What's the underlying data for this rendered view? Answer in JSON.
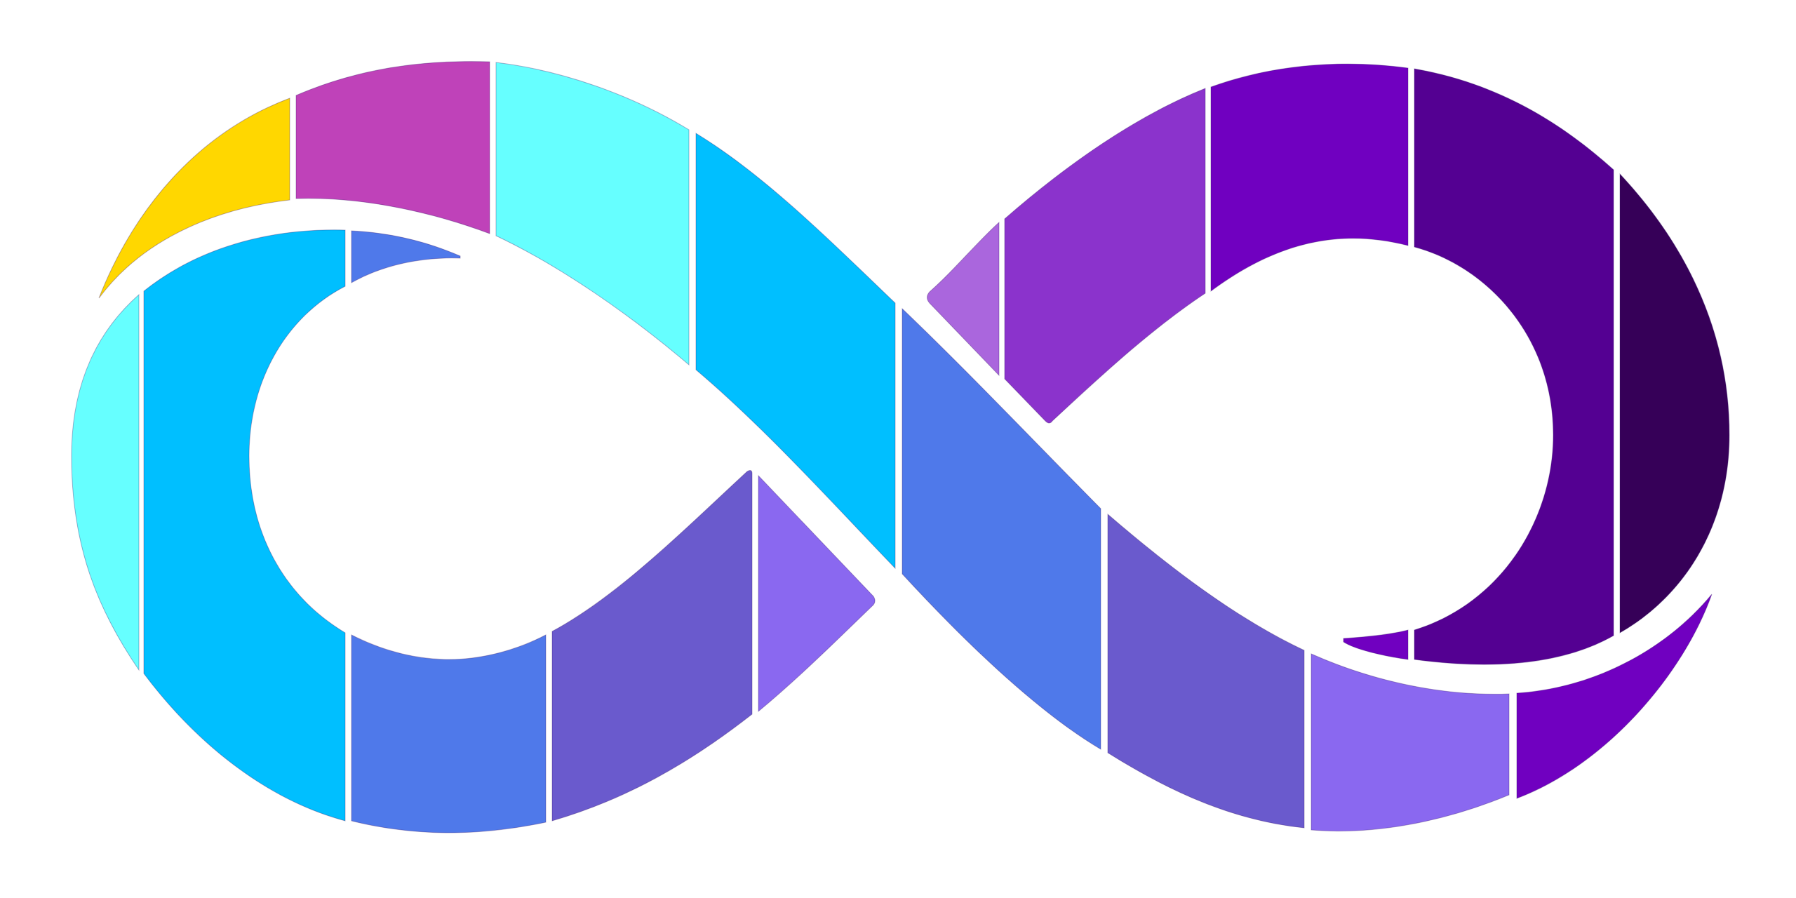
{
  "logo": {
    "icon": "infinity-logo",
    "segments": [
      {
        "name": "segment-gold-tail",
        "color": "#FFD700"
      },
      {
        "name": "segment-magenta",
        "color": "#BF42B9"
      },
      {
        "name": "segment-light-cyan-top",
        "color": "#66FFFF"
      },
      {
        "name": "segment-deep-sky-top",
        "color": "#00BFFF"
      },
      {
        "name": "segment-light-cyan-left",
        "color": "#66FFFF"
      },
      {
        "name": "segment-deep-sky-left",
        "color": "#00BFFF"
      },
      {
        "name": "segment-blue-small",
        "color": "#4F79EA"
      },
      {
        "name": "segment-blue-bottom",
        "color": "#4F79EA"
      },
      {
        "name": "segment-slate-left",
        "color": "#6A5ACD"
      },
      {
        "name": "segment-lavender-left",
        "color": "#8A68F0"
      },
      {
        "name": "segment-blue-cross",
        "color": "#4F79EA"
      },
      {
        "name": "segment-slate-right",
        "color": "#6A5ACD"
      },
      {
        "name": "segment-lavender-right",
        "color": "#8A68F0"
      },
      {
        "name": "segment-violet-tail",
        "color": "#7000C0"
      },
      {
        "name": "segment-violet-small",
        "color": "#7000C0"
      },
      {
        "name": "segment-orchid",
        "color": "#AA66DD"
      },
      {
        "name": "segment-purple",
        "color": "#8B33CC"
      },
      {
        "name": "segment-violet-top",
        "color": "#7000C0"
      },
      {
        "name": "segment-indigo",
        "color": "#540092"
      },
      {
        "name": "segment-dark-indigo",
        "color": "#360058"
      }
    ]
  }
}
